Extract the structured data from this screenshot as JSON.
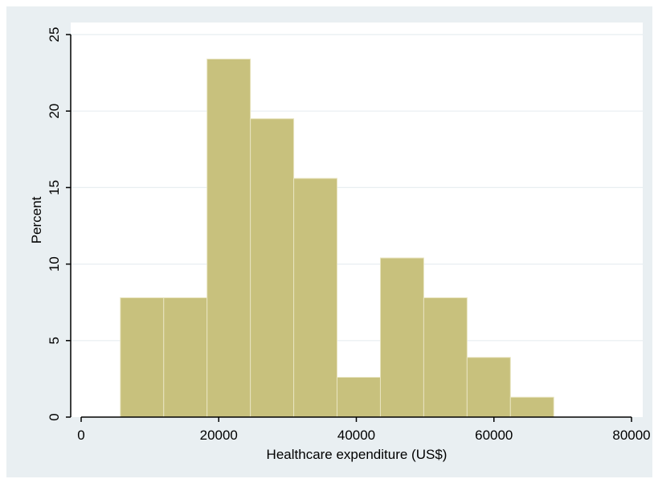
{
  "chart_data": {
    "type": "bar",
    "title": "",
    "xlabel": "Healthcare expenditure (US$)",
    "ylabel": "Percent",
    "xlim": [
      0,
      80000
    ],
    "ylim": [
      0,
      25
    ],
    "x_ticks": [
      "0",
      "20000",
      "40000",
      "60000",
      "80000"
    ],
    "y_ticks": [
      "0",
      "5",
      "10",
      "15",
      "20",
      "25"
    ],
    "x_tick_values": [
      0,
      20000,
      40000,
      60000,
      80000
    ],
    "y_tick_values": [
      0,
      5,
      10,
      15,
      20,
      25
    ],
    "grid": "horizontal",
    "legend": "none",
    "bins": [
      {
        "start": 5700,
        "end": 12000,
        "value": 7.8
      },
      {
        "start": 12000,
        "end": 18300,
        "value": 7.8
      },
      {
        "start": 18300,
        "end": 24600,
        "value": 23.4
      },
      {
        "start": 24600,
        "end": 30900,
        "value": 19.5
      },
      {
        "start": 30900,
        "end": 37200,
        "value": 15.6
      },
      {
        "start": 37200,
        "end": 43500,
        "value": 2.6
      },
      {
        "start": 43500,
        "end": 49800,
        "value": 10.4
      },
      {
        "start": 49800,
        "end": 56100,
        "value": 7.8
      },
      {
        "start": 56100,
        "end": 62400,
        "value": 3.9
      },
      {
        "start": 62400,
        "end": 68700,
        "value": 1.3
      }
    ],
    "colors": {
      "bar_fill": "#c8c17d",
      "bar_stroke": "#e8e4c0",
      "outer_background": "#e9eff2",
      "plot_background": "#ffffff",
      "grid": "#e8eef1",
      "axis": "#000000"
    }
  }
}
